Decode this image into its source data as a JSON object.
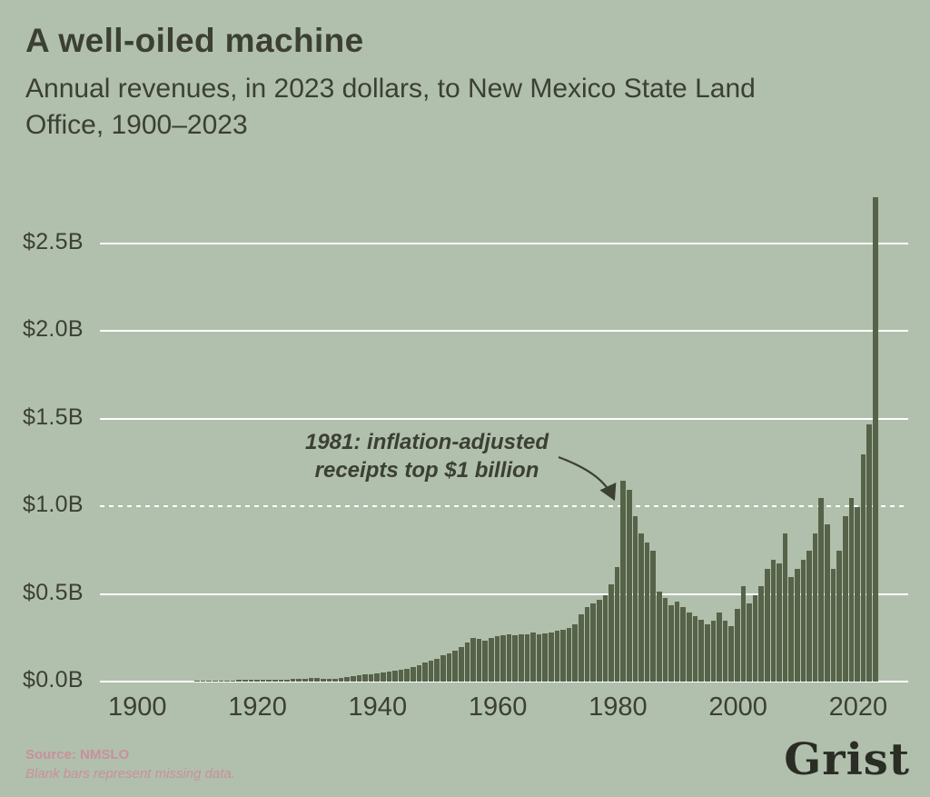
{
  "page": {
    "background": "#b1bfad"
  },
  "header": {
    "title": "A well-oiled machine",
    "subtitle": "Annual revenues, in 2023 dollars, to New Mexico State Land Office, 1900–2023"
  },
  "chart_data": {
    "type": "bar",
    "title": "A well-oiled machine",
    "subtitle": "Annual revenues, in 2023 dollars, to New Mexico State Land Office, 1900–2023",
    "unit": "billions of 2023 dollars",
    "year_start": 1900,
    "year_end": 2023,
    "ylim": [
      0,
      2.8
    ],
    "grid": true,
    "yticks": [
      {
        "value": 0.0,
        "label": "$0.0B",
        "dashed": false
      },
      {
        "value": 0.5,
        "label": "$0.5B",
        "dashed": false
      },
      {
        "value": 1.0,
        "label": "$1.0B",
        "dashed": true
      },
      {
        "value": 1.5,
        "label": "$1.5B",
        "dashed": false
      },
      {
        "value": 2.0,
        "label": "$2.0B",
        "dashed": false
      },
      {
        "value": 2.5,
        "label": "$2.5B",
        "dashed": false
      }
    ],
    "xticks": [
      1900,
      1920,
      1940,
      1960,
      1980,
      2000,
      2020
    ],
    "values": [
      null,
      null,
      null,
      null,
      null,
      null,
      null,
      null,
      null,
      null,
      0.003,
      0.004,
      0.004,
      0.005,
      0.005,
      0.006,
      0.007,
      0.008,
      0.008,
      0.009,
      0.01,
      0.009,
      0.01,
      0.011,
      0.012,
      0.013,
      0.014,
      0.015,
      0.017,
      0.019,
      0.021,
      0.018,
      0.016,
      0.018,
      0.022,
      0.028,
      0.033,
      0.038,
      0.04,
      0.043,
      0.046,
      0.05,
      0.055,
      0.06,
      0.065,
      0.072,
      0.082,
      0.095,
      0.11,
      0.118,
      0.13,
      0.15,
      0.162,
      0.178,
      0.198,
      0.225,
      0.248,
      0.242,
      0.232,
      0.248,
      0.258,
      0.262,
      0.268,
      0.264,
      0.268,
      0.272,
      0.278,
      0.268,
      0.274,
      0.282,
      0.288,
      0.298,
      0.308,
      0.328,
      0.385,
      0.425,
      0.445,
      0.465,
      0.495,
      0.555,
      0.655,
      1.145,
      1.095,
      0.945,
      0.845,
      0.795,
      0.745,
      0.515,
      0.475,
      0.435,
      0.455,
      0.425,
      0.395,
      0.375,
      0.355,
      0.325,
      0.345,
      0.395,
      0.345,
      0.315,
      0.415,
      0.545,
      0.445,
      0.495,
      0.545,
      0.645,
      0.695,
      0.675,
      0.845,
      0.595,
      0.645,
      0.695,
      0.745,
      0.845,
      1.045,
      0.895,
      0.645,
      0.745,
      0.945,
      1.045,
      0.995,
      1.295,
      1.465,
      2.765
    ],
    "annotation": {
      "text_line1": "1981: inflation-adjusted",
      "text_line2": "receipts top $1 billion",
      "target_year": 1981
    },
    "colors": {
      "background": "#b1bfad",
      "bar": "#566349",
      "grid": "#ffffff",
      "text": "#3b4032",
      "footnote": "#c9909c",
      "logo": "#2a2d23"
    }
  },
  "footer": {
    "source": "Source: NMSLO",
    "note": "Blank bars represent missing data.",
    "logo": "Grist"
  }
}
